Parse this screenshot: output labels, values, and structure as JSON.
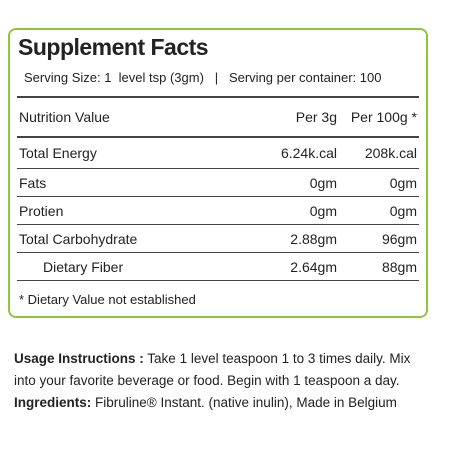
{
  "panel": {
    "title": "Supplement Facts",
    "serving": "Serving Size: 1  level tsp (3gm)   |   Serving per container: 100",
    "header": [
      "Nutrition Value",
      "Per 3g",
      "Per 100g *"
    ],
    "rows": [
      [
        "Total Energy",
        "6.24k.cal",
        "208k.cal"
      ],
      [
        "Fats",
        "0gm",
        "0gm"
      ],
      [
        "Protien",
        "0gm",
        "0gm"
      ],
      [
        "Total Carbohydrate",
        "2.88gm",
        "96gm"
      ],
      [
        "Dietary Fiber",
        "2.64gm",
        "88gm"
      ]
    ],
    "footnote": "* Dietary Value not established"
  },
  "usage": {
    "label": "Usage Instructions :",
    "text": "Take 1 level teaspoon 1 to 3 times daily. Mix into your favorite beverage or food. Begin with 1 teaspoon a day."
  },
  "ingredients": {
    "label": "Ingredients:",
    "text": "Fibruline® Instant. (native inulin), Made in Belgium"
  }
}
